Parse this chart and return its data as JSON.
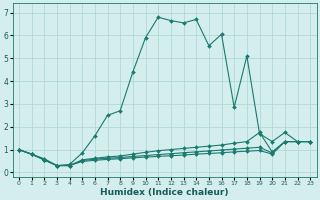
{
  "xlabel": "Humidex (Indice chaleur)",
  "bg_color": "#d4eeee",
  "grid_color": "#aad4d4",
  "line_color": "#1a7a6e",
  "xlim": [
    -0.5,
    23.5
  ],
  "ylim": [
    -0.2,
    7.4
  ],
  "xticks": [
    0,
    1,
    2,
    3,
    4,
    5,
    6,
    7,
    8,
    9,
    10,
    11,
    12,
    13,
    14,
    15,
    16,
    17,
    18,
    19,
    20,
    21,
    22,
    23
  ],
  "yticks": [
    0,
    1,
    2,
    3,
    4,
    5,
    6,
    7
  ],
  "lines": [
    {
      "x": [
        0,
        1,
        2,
        3,
        4,
        5,
        6,
        7,
        8,
        9,
        10,
        11,
        12,
        13,
        14,
        15,
        16,
        17,
        18,
        19,
        20,
        21,
        22,
        23
      ],
      "y": [
        1.0,
        0.8,
        0.6,
        0.3,
        0.35,
        0.85,
        1.6,
        2.5,
        2.7,
        4.4,
        5.9,
        6.8,
        6.65,
        6.55,
        6.7,
        5.55,
        6.05,
        2.85,
        5.1,
        1.7,
        1.35,
        1.75,
        1.35,
        1.35
      ]
    },
    {
      "x": [
        0,
        1,
        2,
        3,
        4,
        5,
        6,
        7,
        8,
        9,
        10,
        11,
        12,
        13,
        14,
        15,
        16,
        17,
        18,
        19,
        20,
        21,
        22,
        23
      ],
      "y": [
        1.0,
        0.8,
        0.55,
        0.3,
        0.3,
        0.55,
        0.62,
        0.68,
        0.72,
        0.8,
        0.88,
        0.95,
        1.0,
        1.05,
        1.1,
        1.15,
        1.2,
        1.28,
        1.35,
        1.75,
        0.9,
        1.35,
        1.35,
        1.35
      ]
    },
    {
      "x": [
        0,
        1,
        2,
        3,
        4,
        5,
        6,
        7,
        8,
        9,
        10,
        11,
        12,
        13,
        14,
        15,
        16,
        17,
        18,
        19,
        20,
        21,
        22,
        23
      ],
      "y": [
        1.0,
        0.8,
        0.55,
        0.3,
        0.3,
        0.52,
        0.58,
        0.62,
        0.65,
        0.7,
        0.74,
        0.78,
        0.82,
        0.86,
        0.9,
        0.94,
        0.98,
        1.02,
        1.06,
        1.1,
        0.85,
        1.35,
        1.35,
        1.35
      ]
    },
    {
      "x": [
        0,
        1,
        2,
        3,
        4,
        5,
        6,
        7,
        8,
        9,
        10,
        11,
        12,
        13,
        14,
        15,
        16,
        17,
        18,
        19,
        20,
        21,
        22,
        23
      ],
      "y": [
        1.0,
        0.8,
        0.55,
        0.3,
        0.3,
        0.48,
        0.53,
        0.57,
        0.6,
        0.64,
        0.67,
        0.7,
        0.73,
        0.76,
        0.8,
        0.83,
        0.86,
        0.9,
        0.93,
        0.96,
        0.8,
        1.35,
        1.35,
        1.35
      ]
    }
  ],
  "marker": "D",
  "markersize": 2.0,
  "linewidth": 0.8,
  "tick_fontsize_x": 4.5,
  "tick_fontsize_y": 5.5,
  "xlabel_fontsize": 6.5,
  "xlabel_color": "#1a5a5a"
}
